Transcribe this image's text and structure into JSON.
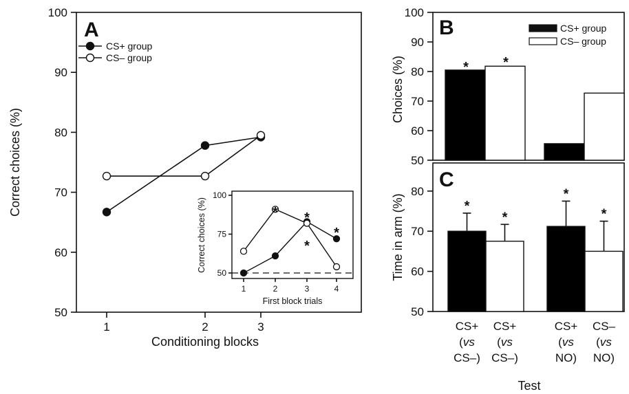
{
  "chart_data": [
    {
      "panel": "A",
      "type": "line",
      "xlabel": "Conditioning blocks",
      "ylabel": "Correct choices (%)",
      "categories": [
        "1",
        "2",
        "3"
      ],
      "yticks": [
        "50",
        "60",
        "70",
        "80",
        "90",
        "100"
      ],
      "ylim": [
        50,
        100
      ],
      "legend_position": "top-left",
      "series": [
        {
          "name": "CS+ group",
          "marker": "filled-circle",
          "values": [
            66.7,
            77.8,
            79.2
          ]
        },
        {
          "name": "CS– group",
          "marker": "open-circle",
          "values": [
            72.7,
            72.7,
            79.5
          ]
        }
      ]
    },
    {
      "panel": "A-inset",
      "type": "line",
      "xlabel": "First block trials",
      "ylabel": "Correct choices (%)",
      "categories": [
        "1",
        "2",
        "3",
        "4"
      ],
      "yticks": [
        "50",
        "75",
        "100"
      ],
      "ylim": [
        50,
        100
      ],
      "chance_line": 50,
      "series": [
        {
          "name": "CS+ group",
          "marker": "filled-circle",
          "values": [
            50,
            61,
            83,
            72
          ]
        },
        {
          "name": "CS– group",
          "marker": "open-circle",
          "values": [
            64,
            91,
            82,
            54
          ]
        }
      ],
      "significance": [
        "*",
        "*",
        "*",
        "*"
      ]
    },
    {
      "panel": "B",
      "type": "bar",
      "ylabel": "Choices (%)",
      "yticks": [
        "50",
        "60",
        "70",
        "80",
        "90",
        "100"
      ],
      "ylim": [
        50,
        100
      ],
      "legend_position": "top-right",
      "series": [
        {
          "name": "CS+ group",
          "color": "#000000",
          "values": [
            80.5,
            55.6
          ]
        },
        {
          "name": "CS– group",
          "color": "#ffffff",
          "values": [
            81.8,
            72.7
          ]
        }
      ],
      "significance": [
        "*",
        "*"
      ]
    },
    {
      "panel": "C",
      "type": "bar",
      "ylabel": "Time in arm (%)",
      "xlabel": "Test",
      "yticks": [
        "50",
        "60",
        "70",
        "80"
      ],
      "ylim": [
        50,
        87
      ],
      "categories": [
        [
          "CS+",
          "(vs",
          "CS–)"
        ],
        [
          "CS+",
          "(vs",
          "CS–)"
        ],
        [
          "CS+",
          "(vs",
          "NO)"
        ],
        [
          "CS–",
          "(vs",
          "NO)"
        ]
      ],
      "values": [
        70.0,
        67.5,
        71.2,
        65.0
      ],
      "errors": [
        4.5,
        4.2,
        6.3,
        7.5
      ],
      "colors": [
        "#000000",
        "#ffffff",
        "#000000",
        "#ffffff"
      ],
      "significance": [
        "*",
        "*",
        "*",
        "*"
      ]
    }
  ],
  "labels": {
    "panel_a": "A",
    "panel_b": "B",
    "panel_c": "C",
    "legend_a_plus": "CS+ group",
    "legend_a_minus": "CS– group",
    "legend_b_plus": "CS+ group",
    "legend_b_minus": "CS– group"
  }
}
